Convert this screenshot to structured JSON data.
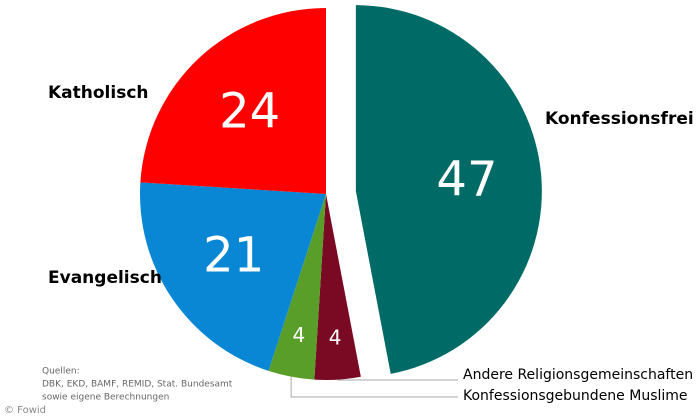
{
  "chart_data": {
    "type": "pie",
    "categories": [
      "Konfessionsfrei",
      "Andere Religionsgemeinschaften",
      "Konfessionsgebundene Muslime",
      "Evangelisch",
      "Katholisch"
    ],
    "values": [
      47,
      4,
      4,
      21,
      24
    ],
    "colors": [
      "#006b66",
      "#7a0a23",
      "#5a9e2a",
      "#0a87d4",
      "#ff0000"
    ],
    "source": [
      "Quellen:",
      "DBK, EKD, BAMF, REMID, Stat. Bundesamt",
      "sowie eigene Berechnungen"
    ],
    "credit": "© Fowid"
  }
}
